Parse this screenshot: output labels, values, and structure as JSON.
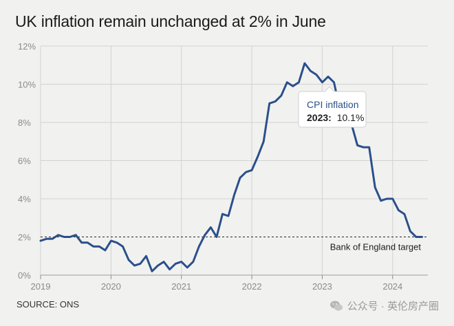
{
  "title": "UK inflation remain unchanged at 2% in June",
  "source": "SOURCE: ONS",
  "watermark": "公众号 · 英伦房产圈",
  "colors": {
    "line": "#2a4f8a",
    "grid": "#d2d2d0",
    "axis_text": "#8a8a8a",
    "target_line": "#222222"
  },
  "tooltip": {
    "title": "CPI inflation",
    "year": "2023:",
    "value": "10.1%"
  },
  "chart_data": {
    "type": "line",
    "title": "UK inflation remain unchanged at 2% in June",
    "xlim": [
      2019.0,
      2024.5
    ],
    "ylim": [
      0,
      12
    ],
    "x_ticks": [
      2019,
      2020,
      2021,
      2022,
      2023,
      2024
    ],
    "x_tick_labels": [
      "2019",
      "2020",
      "2021",
      "2022",
      "2023",
      "2024"
    ],
    "y_ticks": [
      0,
      2,
      4,
      6,
      8,
      10,
      12
    ],
    "y_tick_labels": [
      "0%",
      "2%",
      "4%",
      "6%",
      "8%",
      "10%",
      "12%"
    ],
    "grid": true,
    "reference_line": {
      "y": 2,
      "label": "Bank of England target"
    },
    "series": [
      {
        "name": "CPI inflation",
        "x": [
          2019.0,
          2019.083,
          2019.167,
          2019.25,
          2019.333,
          2019.417,
          2019.5,
          2019.583,
          2019.667,
          2019.75,
          2019.833,
          2019.917,
          2020.0,
          2020.083,
          2020.167,
          2020.25,
          2020.333,
          2020.417,
          2020.5,
          2020.583,
          2020.667,
          2020.75,
          2020.833,
          2020.917,
          2021.0,
          2021.083,
          2021.167,
          2021.25,
          2021.333,
          2021.417,
          2021.5,
          2021.583,
          2021.667,
          2021.75,
          2021.833,
          2021.917,
          2022.0,
          2022.083,
          2022.167,
          2022.25,
          2022.333,
          2022.417,
          2022.5,
          2022.583,
          2022.667,
          2022.75,
          2022.833,
          2022.917,
          2023.0,
          2023.083,
          2023.167,
          2023.25,
          2023.333,
          2023.417,
          2023.5,
          2023.583,
          2023.667,
          2023.75,
          2023.833,
          2023.917,
          2024.0,
          2024.083,
          2024.167,
          2024.25,
          2024.333,
          2024.417
        ],
        "y": [
          1.8,
          1.9,
          1.9,
          2.1,
          2.0,
          2.0,
          2.1,
          1.7,
          1.7,
          1.5,
          1.5,
          1.3,
          1.8,
          1.7,
          1.5,
          0.8,
          0.5,
          0.6,
          1.0,
          0.2,
          0.5,
          0.7,
          0.3,
          0.6,
          0.7,
          0.4,
          0.7,
          1.5,
          2.1,
          2.5,
          2.0,
          3.2,
          3.1,
          4.2,
          5.1,
          5.4,
          5.5,
          6.2,
          7.0,
          9.0,
          9.1,
          9.4,
          10.1,
          9.9,
          10.1,
          11.1,
          10.7,
          10.5,
          10.1,
          10.4,
          10.1,
          8.7,
          8.7,
          7.9,
          6.8,
          6.7,
          6.7,
          4.6,
          3.9,
          4.0,
          4.0,
          3.4,
          3.2,
          2.3,
          2.0,
          2.0
        ]
      }
    ]
  }
}
